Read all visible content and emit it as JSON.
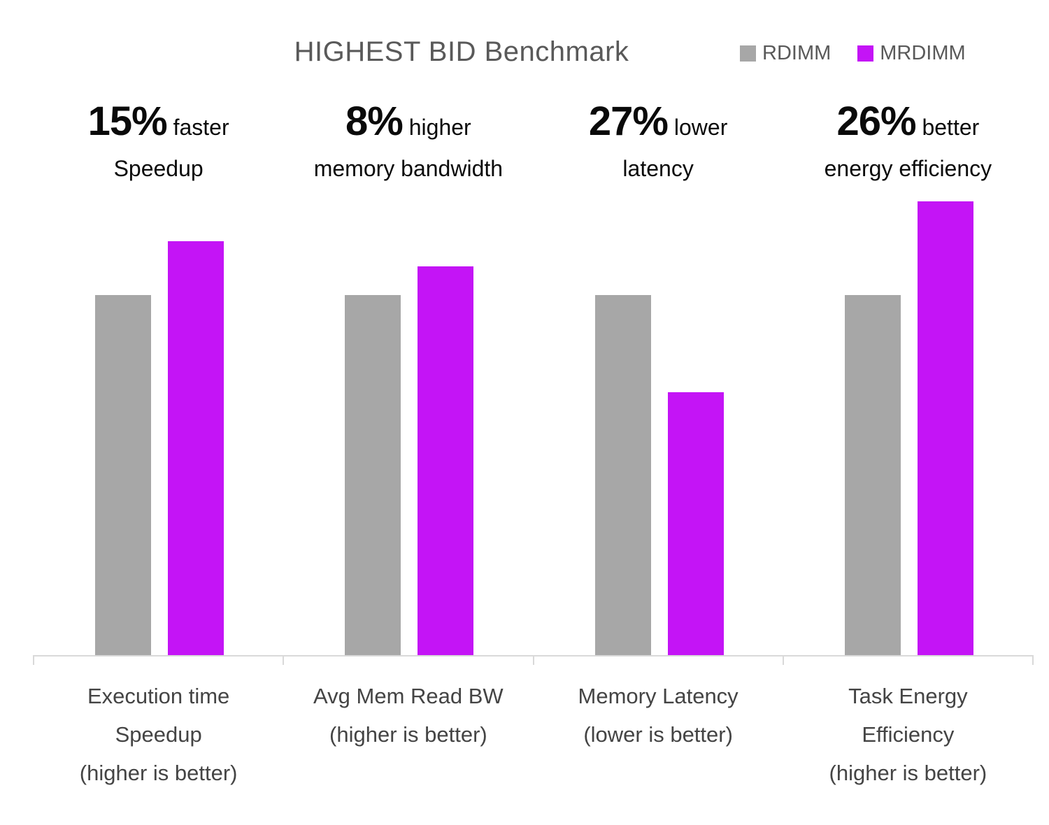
{
  "chart_data": {
    "type": "bar",
    "title": "HIGHEST BID Benchmark",
    "legend_position": "top-right",
    "grid": false,
    "y_axis_visible": false,
    "ylim": [
      0,
      1.35
    ],
    "values_unit": "relative to RDIMM baseline (RDIMM = 1.00)",
    "categories": [
      {
        "label": "Execution time\nSpeedup\n(higher is better)",
        "annotation": {
          "highlight": "15%",
          "text": "faster",
          "line2": "Speedup"
        }
      },
      {
        "label": "Avg Mem Read BW\n(higher is better)",
        "annotation": {
          "highlight": "8%",
          "text": "higher",
          "line2": "memory bandwidth"
        }
      },
      {
        "label": "Memory Latency\n(lower is better)",
        "annotation": {
          "highlight": "27%",
          "text": "lower",
          "line2": "latency"
        }
      },
      {
        "label": "Task Energy\nEfficiency\n(higher is better)",
        "annotation": {
          "highlight": "26%",
          "text": "better",
          "line2": "energy efficiency"
        }
      }
    ],
    "series": [
      {
        "name": "RDIMM",
        "color": "#A7A7A7",
        "values": [
          1.0,
          1.0,
          1.0,
          1.0
        ]
      },
      {
        "name": "MRDIMM",
        "color": "#C414F6",
        "values": [
          1.15,
          1.08,
          0.73,
          1.26
        ]
      }
    ]
  },
  "colors": {
    "title_text": "#595959",
    "legend_text": "#595959",
    "axis_label_text": "#444444",
    "annotation_text": "#0a0a0a",
    "axis_line": "#D9D9D9",
    "background": "#FFFFFF"
  }
}
